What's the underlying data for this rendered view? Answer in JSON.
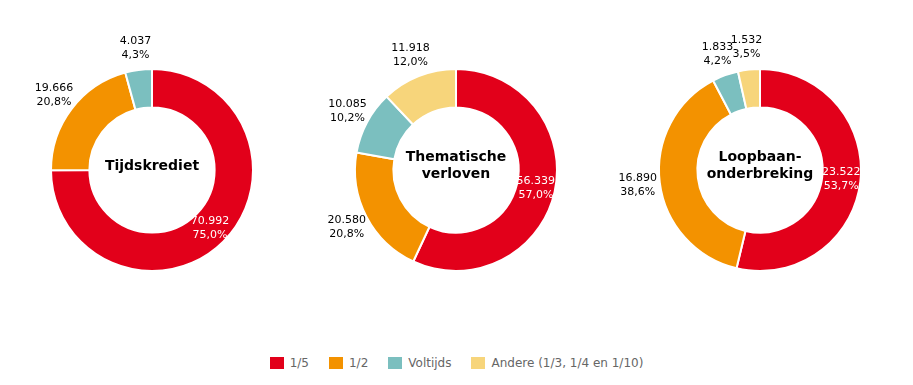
{
  "chart_data": [
    {
      "type": "doughnut",
      "title": "Tijdskrediet",
      "categories": [
        "1/5",
        "1/2",
        "Voltijds",
        "Andere (1/3, 1/4 en 1/10)"
      ],
      "values": [
        70992,
        19666,
        4037,
        0
      ],
      "value_labels": [
        "70.992",
        "19.666",
        "4.037",
        null
      ],
      "percentages": [
        75.0,
        20.8,
        4.3,
        null
      ],
      "percentage_labels": [
        "75,0%",
        "20,8%",
        "4,3%",
        null
      ],
      "colors": [
        "#e2001a",
        "#f39200",
        "#7bbfbf",
        "#f7d57b"
      ],
      "data_labels": true,
      "legend": "bottom"
    },
    {
      "type": "doughnut",
      "title": "Thematische\nverloven",
      "categories": [
        "1/5",
        "1/2",
        "Voltijds",
        "Andere (1/3, 1/4 en 1/10)"
      ],
      "values": [
        56339,
        20580,
        10085,
        11918
      ],
      "value_labels": [
        "56.339",
        "20.580",
        "10.085",
        "11.918"
      ],
      "percentages": [
        57.0,
        20.8,
        10.2,
        12.0
      ],
      "percentage_labels": [
        "57,0%",
        "20,8%",
        "10,2%",
        "12,0%"
      ],
      "colors": [
        "#e2001a",
        "#f39200",
        "#7bbfbf",
        "#f7d57b"
      ],
      "data_labels": true,
      "legend": "bottom"
    },
    {
      "type": "doughnut",
      "title": "Loopbaan-\nonderbreking",
      "categories": [
        "1/5",
        "1/2",
        "Voltijds",
        "Andere (1/3, 1/4 en 1/10)"
      ],
      "values": [
        23522,
        16890,
        1833,
        1532
      ],
      "value_labels": [
        "23.522",
        "16.890",
        "1.833",
        "1.532"
      ],
      "percentages": [
        53.7,
        38.6,
        4.2,
        3.5
      ],
      "percentage_labels": [
        "53,7%",
        "38,6%",
        "4,2%",
        "3,5%"
      ],
      "colors": [
        "#e2001a",
        "#f39200",
        "#7bbfbf",
        "#f7d57b"
      ],
      "data_labels": true,
      "legend": "bottom"
    }
  ]
}
